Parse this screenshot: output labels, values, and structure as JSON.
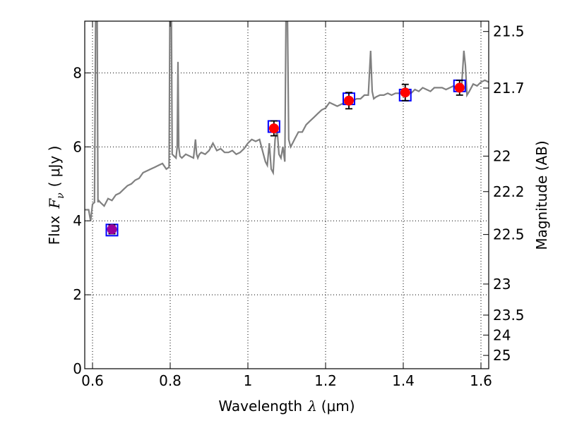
{
  "chart_data": {
    "type": "scatter",
    "xlabel": {
      "text": "Wavelength",
      "symbol": "λ",
      "unit": "(μm)"
    },
    "ylabel": {
      "text": "Flux",
      "symbol": "F",
      "subscript": "ν",
      "unit": "( μJy )"
    },
    "ylabel_right": "Magnitude (AB)",
    "xlim": [
      0.58,
      1.62
    ],
    "ylim": [
      0,
      9.4
    ],
    "x_ticks": [
      0.6,
      0.8,
      1.0,
      1.2,
      1.4,
      1.6
    ],
    "x_tick_labels": [
      "0.6",
      "0.8",
      "1",
      "1.2",
      "1.4",
      "1.6"
    ],
    "y_ticks": [
      0,
      2,
      4,
      6,
      8
    ],
    "y_tick_labels": [
      "0",
      "2",
      "4",
      "6",
      "8"
    ],
    "right_ticks": [
      {
        "label": "21.5",
        "flux": 9.12
      },
      {
        "label": "21.7",
        "flux": 7.59
      },
      {
        "label": "22",
        "flux": 5.75
      },
      {
        "label": "22.2",
        "flux": 4.79
      },
      {
        "label": "22.5",
        "flux": 3.63
      },
      {
        "label": "23",
        "flux": 2.29
      },
      {
        "label": "23.5",
        "flux": 1.45
      },
      {
        "label": "24",
        "flux": 0.91
      },
      {
        "label": "25",
        "flux": 0.36
      }
    ],
    "grid": true,
    "series": [
      {
        "kind": "model-spectrum-line",
        "color": "#808080",
        "x": [
          0.58,
          0.59,
          0.595,
          0.6,
          0.605,
          0.608,
          0.61,
          0.612,
          0.614,
          0.616,
          0.62,
          0.63,
          0.64,
          0.65,
          0.66,
          0.67,
          0.68,
          0.69,
          0.7,
          0.71,
          0.72,
          0.73,
          0.74,
          0.75,
          0.76,
          0.77,
          0.78,
          0.79,
          0.797,
          0.799,
          0.801,
          0.803,
          0.805,
          0.81,
          0.815,
          0.818,
          0.82,
          0.822,
          0.825,
          0.83,
          0.84,
          0.85,
          0.86,
          0.865,
          0.868,
          0.871,
          0.875,
          0.88,
          0.89,
          0.9,
          0.91,
          0.92,
          0.93,
          0.94,
          0.95,
          0.96,
          0.97,
          0.98,
          0.99,
          1.0,
          1.01,
          1.02,
          1.03,
          1.04,
          1.045,
          1.05,
          1.055,
          1.06,
          1.065,
          1.07,
          1.075,
          1.08,
          1.085,
          1.09,
          1.095,
          1.098,
          1.1,
          1.102,
          1.105,
          1.11,
          1.115,
          1.12,
          1.13,
          1.14,
          1.15,
          1.16,
          1.17,
          1.18,
          1.19,
          1.2,
          1.21,
          1.22,
          1.23,
          1.24,
          1.25,
          1.26,
          1.27,
          1.28,
          1.29,
          1.3,
          1.31,
          1.316,
          1.32,
          1.324,
          1.33,
          1.34,
          1.35,
          1.36,
          1.37,
          1.38,
          1.39,
          1.4,
          1.41,
          1.42,
          1.43,
          1.44,
          1.45,
          1.46,
          1.47,
          1.48,
          1.49,
          1.5,
          1.51,
          1.52,
          1.53,
          1.54,
          1.55,
          1.556,
          1.56,
          1.564,
          1.57,
          1.58,
          1.59,
          1.6,
          1.61,
          1.62
        ],
        "y": [
          4.3,
          4.3,
          4.0,
          4.45,
          4.5,
          9.4,
          9.4,
          9.4,
          4.5,
          4.55,
          4.5,
          4.4,
          4.6,
          4.55,
          4.7,
          4.75,
          4.85,
          4.95,
          5.0,
          5.1,
          5.15,
          5.3,
          5.35,
          5.4,
          5.45,
          5.5,
          5.55,
          5.4,
          5.45,
          9.4,
          9.4,
          9.4,
          5.8,
          5.75,
          5.7,
          6.0,
          8.3,
          6.0,
          5.75,
          5.7,
          5.8,
          5.75,
          5.7,
          6.2,
          5.8,
          5.7,
          5.8,
          5.85,
          5.8,
          5.9,
          6.1,
          5.9,
          5.95,
          5.85,
          5.85,
          5.9,
          5.8,
          5.85,
          5.95,
          6.1,
          6.2,
          6.15,
          6.2,
          5.8,
          5.6,
          5.5,
          6.1,
          5.4,
          5.3,
          6.2,
          6.5,
          5.8,
          5.7,
          6.0,
          5.6,
          9.4,
          9.4,
          9.4,
          6.2,
          6.0,
          6.1,
          6.2,
          6.4,
          6.4,
          6.6,
          6.7,
          6.8,
          6.9,
          7.0,
          7.05,
          7.2,
          7.15,
          7.1,
          7.15,
          7.2,
          7.25,
          7.25,
          7.3,
          7.3,
          7.4,
          7.4,
          8.6,
          7.5,
          7.3,
          7.35,
          7.4,
          7.4,
          7.45,
          7.4,
          7.45,
          7.45,
          7.45,
          7.5,
          7.45,
          7.55,
          7.5,
          7.6,
          7.55,
          7.5,
          7.6,
          7.6,
          7.6,
          7.55,
          7.6,
          7.65,
          7.55,
          7.6,
          8.6,
          8.2,
          7.4,
          7.5,
          7.7,
          7.65,
          7.75,
          7.8,
          7.75
        ]
      },
      {
        "kind": "box-markers",
        "color": "#0000ff",
        "x": [
          0.65,
          1.067,
          1.26,
          1.405,
          1.545
        ],
        "y": [
          3.75,
          6.55,
          7.3,
          7.4,
          7.65
        ]
      },
      {
        "kind": "points-with-errorbars",
        "x": [
          0.65,
          1.067,
          1.26,
          1.405,
          1.545
        ],
        "y": [
          3.77,
          6.5,
          7.25,
          7.47,
          7.6
        ],
        "err": [
          0.12,
          0.2,
          0.22,
          0.22,
          0.2
        ],
        "colors": [
          "#990099",
          "#ff0000",
          "#ff0000",
          "#ff0000",
          "#ff0000"
        ]
      }
    ]
  }
}
